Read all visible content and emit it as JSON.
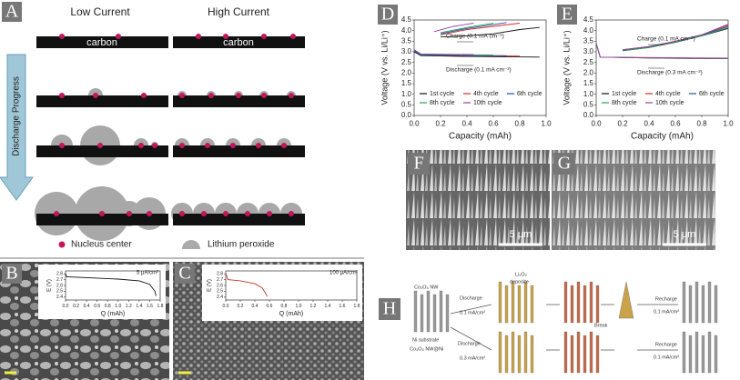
{
  "panels": {
    "A": {
      "label": "A",
      "low_current": "Low Current",
      "high_current": "High Current",
      "carbon_left": "carbon",
      "carbon_right": "carbon",
      "arrow": "Discharge Progress",
      "legend": [
        "Nucleus center",
        "Lithium peroxide"
      ]
    },
    "B": {
      "label": "B"
    },
    "C": {
      "label": "C"
    },
    "D": {
      "label": "D"
    },
    "E": {
      "label": "E"
    },
    "F": {
      "label": "F",
      "scale_bar": "5 μm"
    },
    "G": {
      "label": "G",
      "scale_bar": "5 μm"
    },
    "H": {
      "label": "H",
      "texts": [
        "Co₃O₄ NW",
        "Ni substrate",
        "Co₃O₄ NW@Ni",
        "Li₂O₂",
        "deposite",
        "Discharge",
        "0.1 mA/cm²",
        "Discharge",
        "0.3 mA/cm²",
        "Break",
        "Recharge",
        "0.1 mA/cm²",
        "Recharge",
        "0.1 mA/cm²"
      ]
    }
  },
  "chart_data": [
    {
      "type": "line",
      "x_label": "Q (mAh)",
      "y_label": "E (V)",
      "annotation": "5 μA/cm²",
      "xlim": [
        0,
        1.8
      ],
      "ylim": [
        2.35,
        2.85
      ],
      "xticks": [
        {
          "value": 0,
          "label": "0.0"
        },
        0.2,
        0.4,
        0.6,
        0.8,
        {
          "value": 1,
          "label": "1.0"
        },
        1.2,
        1.4,
        1.6,
        1.8
      ],
      "yticks": [
        2.4,
        2.5,
        2.6,
        2.7,
        2.8
      ],
      "series": [
        {
          "color": "#111111",
          "x": [
            0,
            0.02,
            0.5,
            1.0,
            1.4,
            1.6,
            1.7,
            1.72
          ],
          "values": [
            2.8,
            2.75,
            2.73,
            2.71,
            2.68,
            2.62,
            2.5,
            2.42
          ]
        }
      ]
    },
    {
      "type": "line",
      "x_label": "Q (mAh)",
      "y_label": "E (V)",
      "annotation": "100 μA/cm²",
      "xlim": [
        0,
        1.8
      ],
      "ylim": [
        2.35,
        2.85
      ],
      "xticks": [
        {
          "value": 0,
          "label": "0.0"
        },
        0.2,
        0.4,
        0.6,
        0.8,
        {
          "value": 1,
          "label": "1.0"
        },
        1.2,
        1.4,
        1.6,
        1.8
      ],
      "yticks": [
        2.4,
        2.5,
        2.6,
        2.7,
        2.8
      ],
      "series": [
        {
          "color": "#c0392b",
          "x": [
            0,
            0.03,
            0.2,
            0.4,
            0.5,
            0.55,
            0.57
          ],
          "values": [
            2.8,
            2.7,
            2.68,
            2.63,
            2.56,
            2.46,
            2.41
          ]
        }
      ]
    },
    {
      "type": "line",
      "x_label": "Capacity (mAh)",
      "y_label": "Voltage (V vs. Li/Li⁺)",
      "annotations": [
        "Charge (0.1 mA cm⁻²)",
        "Discharge (0.1 mA cm⁻²)"
      ],
      "xlim": [
        0,
        1
      ],
      "ylim": [
        0,
        4.5
      ],
      "xticks": [
        {
          "value": 0,
          "label": "0.0"
        },
        0.2,
        0.4,
        0.6,
        0.8,
        {
          "value": 1,
          "label": "1.0"
        }
      ],
      "yticks": [
        {
          "value": 0,
          "label": "0.0"
        },
        0.5,
        {
          "value": 1,
          "label": "1.0"
        },
        1.5,
        {
          "value": 2,
          "label": "2.0"
        },
        2.5,
        {
          "value": 3,
          "label": "3.0"
        },
        3.5,
        {
          "value": 4,
          "label": "4.0"
        },
        4.5
      ],
      "series": [
        {
          "name": "1st cycle",
          "color": "#111111",
          "x": [
            0,
            0.05,
            0.4,
            0.95,
            0,
            0.2,
            0.4,
            0.6,
            0.8,
            0.95
          ],
          "values": [
            3.0,
            2.82,
            2.78,
            2.75,
            null,
            3.7,
            3.75,
            3.85,
            4.05,
            4.15
          ]
        },
        {
          "name": "4th cycle",
          "color": "#d62728",
          "x": [
            0,
            0.05,
            0.4,
            0.8,
            0,
            0.2,
            0.4,
            0.6,
            0.8
          ],
          "values": [
            3.05,
            2.85,
            2.82,
            2.8,
            null,
            3.8,
            4.05,
            4.2,
            4.35
          ]
        },
        {
          "name": "6th cycle",
          "color": "#1f4fa8",
          "x": [
            0,
            0.05,
            0.4,
            0.7,
            0,
            0.2,
            0.4,
            0.6,
            0.7
          ],
          "values": [
            3.05,
            2.85,
            2.83,
            2.82,
            null,
            3.85,
            4.1,
            4.28,
            4.38
          ]
        },
        {
          "name": "8th cycle",
          "color": "#2ca05a",
          "x": [
            0,
            0.05,
            0.4,
            0.6,
            0,
            0.2,
            0.4,
            0.6
          ],
          "values": [
            3.1,
            2.88,
            2.86,
            2.85,
            null,
            3.9,
            4.15,
            4.35
          ]
        },
        {
          "name": "10th cycle",
          "color": "#9b3fa0",
          "x": [
            0,
            0.05,
            0.3,
            0.45,
            0,
            0.15,
            0.3,
            0.45
          ],
          "values": [
            3.1,
            2.9,
            2.88,
            2.87,
            null,
            3.95,
            4.2,
            4.35
          ]
        }
      ]
    },
    {
      "type": "line",
      "x_label": "Capacity (mAh)",
      "y_label": "Voltage (V vs. Li/Li⁺)",
      "annotations": [
        "Charge (0.1 mA cm⁻²)",
        "Discharge (0.3 mA cm⁻²)"
      ],
      "xlim": [
        0,
        1
      ],
      "ylim": [
        0,
        4.5
      ],
      "xticks": [
        {
          "value": 0,
          "label": "0.0"
        },
        0.2,
        0.4,
        0.6,
        0.8,
        {
          "value": 1,
          "label": "1.0"
        }
      ],
      "yticks": [
        {
          "value": 0,
          "label": "0.0"
        },
        0.5,
        {
          "value": 1,
          "label": "1.0"
        },
        1.5,
        {
          "value": 2,
          "label": "2.0"
        },
        2.5,
        {
          "value": 3,
          "label": "3.0"
        },
        3.5,
        {
          "value": 4,
          "label": "4.0"
        },
        4.5
      ],
      "series": [
        {
          "name": "1st cycle",
          "color": "#111111",
          "x": [
            0,
            0.03,
            0.5,
            1.0,
            0,
            0.2,
            0.4,
            0.6,
            0.8,
            1.0
          ],
          "values": [
            3.4,
            2.75,
            2.7,
            2.68,
            null,
            3.05,
            3.2,
            3.45,
            3.75,
            4.1
          ]
        },
        {
          "name": "4th cycle",
          "color": "#d62728",
          "x": [
            0,
            0.03,
            0.5,
            1.0,
            0,
            0.2,
            0.4,
            0.6,
            0.8,
            1.0
          ],
          "values": [
            3.4,
            2.75,
            2.72,
            2.7,
            null,
            3.1,
            3.25,
            3.5,
            3.8,
            4.25
          ]
        },
        {
          "name": "6th cycle",
          "color": "#1f4fa8",
          "x": [
            0,
            0.03,
            0.5,
            1.0,
            0,
            0.2,
            0.4,
            0.6,
            0.8,
            1.0
          ],
          "values": [
            3.4,
            2.75,
            2.71,
            2.69,
            null,
            3.08,
            3.22,
            3.48,
            3.78,
            4.2
          ]
        },
        {
          "name": "8th cycle",
          "color": "#2ca05a",
          "x": [
            0,
            0.03,
            0.5,
            1.0,
            0,
            0.2,
            0.4,
            0.6,
            0.8,
            1.0
          ],
          "values": [
            3.4,
            2.75,
            2.7,
            2.68,
            null,
            3.06,
            3.2,
            3.46,
            3.76,
            4.15
          ]
        },
        {
          "name": "10th cycle",
          "color": "#9b3fa0",
          "x": [
            0,
            0.03,
            0.5,
            1.0,
            0,
            0.2,
            0.4,
            0.6,
            0.8,
            1.0
          ],
          "values": [
            3.4,
            2.75,
            2.71,
            2.69,
            null,
            3.1,
            3.25,
            3.5,
            3.8,
            4.3
          ]
        }
      ]
    }
  ]
}
